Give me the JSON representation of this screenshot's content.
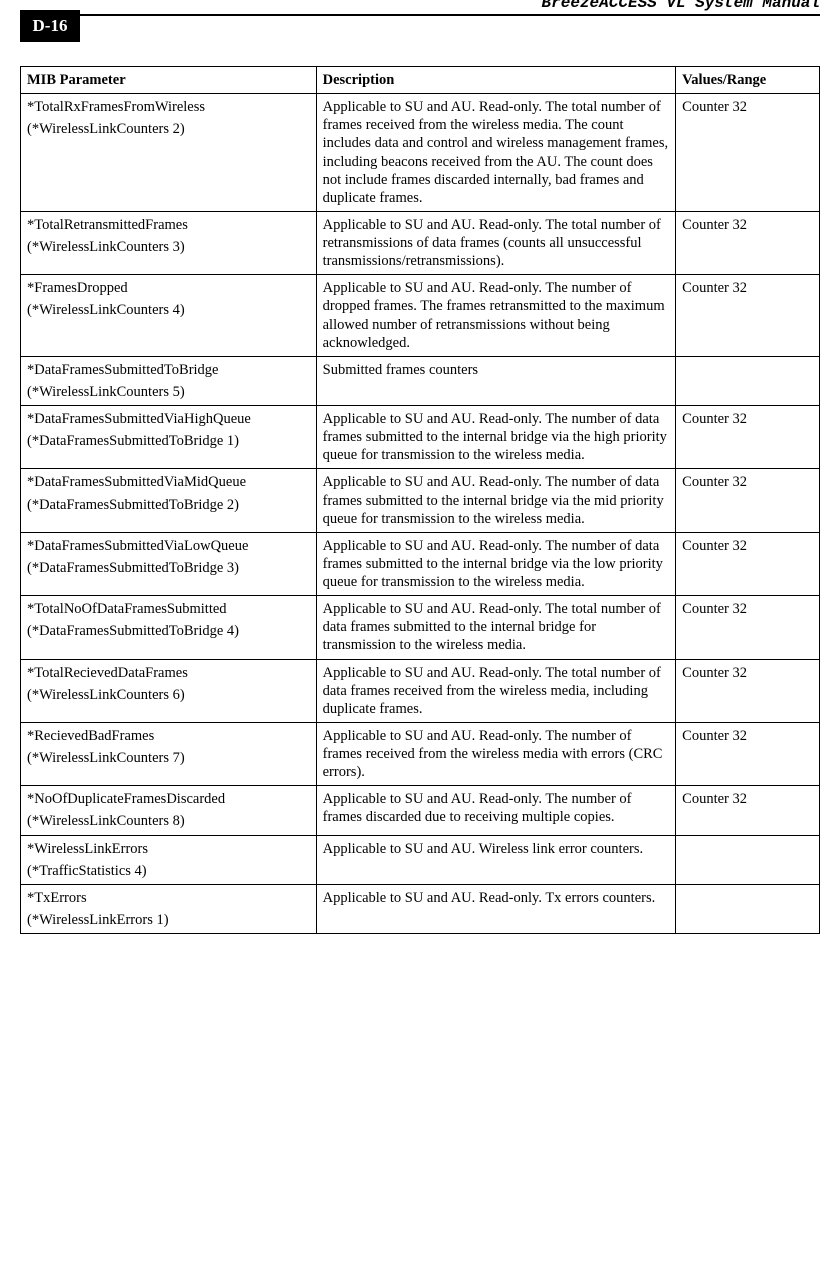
{
  "header": {
    "page_badge": "D-16",
    "manual_title": "BreezeACCESS VL System Manual"
  },
  "table": {
    "columns": [
      "MIB Parameter",
      "Description",
      "Values/Range"
    ],
    "rows": [
      {
        "param": "*TotalRxFramesFromWireless",
        "sub": "(*WirelessLinkCounters 2)",
        "desc": "Applicable to SU and AU. Read-only. The total number of frames received from the wireless media. The count includes data and control and wireless management frames, including beacons received from the AU. The count does not include frames discarded internally, bad frames and duplicate frames.",
        "range": "Counter 32"
      },
      {
        "param": "*TotalRetransmittedFrames",
        "sub": "(*WirelessLinkCounters 3)",
        "desc": "Applicable to SU and AU. Read-only. The total number of retransmissions of data frames (counts all unsuccessful transmissions/retransmissions).",
        "range": "Counter 32"
      },
      {
        "param": "*FramesDropped",
        "sub": "(*WirelessLinkCounters 4)",
        "desc": "Applicable to SU and AU. Read-only. The number of dropped frames. The frames retransmitted to the maximum allowed number of retransmissions without being acknowledged.",
        "range": "Counter 32"
      },
      {
        "param": "*DataFramesSubmittedToBridge",
        "sub": "(*WirelessLinkCounters 5)",
        "desc": "Submitted frames counters",
        "range": ""
      },
      {
        "param": "*DataFramesSubmittedViaHighQueue",
        "sub": "(*DataFramesSubmittedToBridge 1)",
        "desc": "Applicable to SU and AU. Read-only. The number of data frames submitted to the internal bridge via the high priority queue for transmission to the wireless media.",
        "range": "Counter 32"
      },
      {
        "param": "*DataFramesSubmittedViaMidQueue",
        "sub": "(*DataFramesSubmittedToBridge 2)",
        "desc": "Applicable to SU and AU. Read-only. The number of data frames submitted to the internal bridge via the mid priority queue for transmission to the wireless media.",
        "range": "Counter 32"
      },
      {
        "param": "*DataFramesSubmittedViaLowQueue",
        "sub": "(*DataFramesSubmittedToBridge 3)",
        "desc": "Applicable to SU and AU. Read-only. The number of data frames submitted to the internal bridge via the low priority queue for transmission to the wireless media.",
        "range": "Counter 32"
      },
      {
        "param": "*TotalNoOfDataFramesSubmitted",
        "sub": "(*DataFramesSubmittedToBridge 4)",
        "desc": "Applicable to SU and AU. Read-only. The total number of data frames submitted to the internal bridge for transmission to the wireless media.",
        "range": "Counter 32"
      },
      {
        "param": "*TotalRecievedDataFrames",
        "sub": "(*WirelessLinkCounters 6)",
        "desc": "Applicable to SU and AU. Read-only. The total number of data frames received from the wireless media, including duplicate frames.",
        "range": "Counter 32"
      },
      {
        "param": "*RecievedBadFrames",
        "sub": "(*WirelessLinkCounters 7)",
        "desc": "Applicable to SU and AU. Read-only. The number of frames received from the wireless media with errors (CRC errors).",
        "range": "Counter 32"
      },
      {
        "param": "*NoOfDuplicateFramesDiscarded",
        "sub": "(*WirelessLinkCounters 8)",
        "desc": "Applicable to SU and AU. Read-only. The number of frames discarded due to receiving multiple copies.",
        "range": "Counter 32"
      },
      {
        "param": "*WirelessLinkErrors",
        "sub": "(*TrafficStatistics 4)",
        "desc": "Applicable to SU and AU. Wireless link error counters.",
        "range": ""
      },
      {
        "param": "*TxErrors",
        "sub": " (*WirelessLinkErrors 1)",
        "desc": "Applicable to SU and AU. Read-only. Tx errors counters.",
        "range": ""
      }
    ]
  }
}
